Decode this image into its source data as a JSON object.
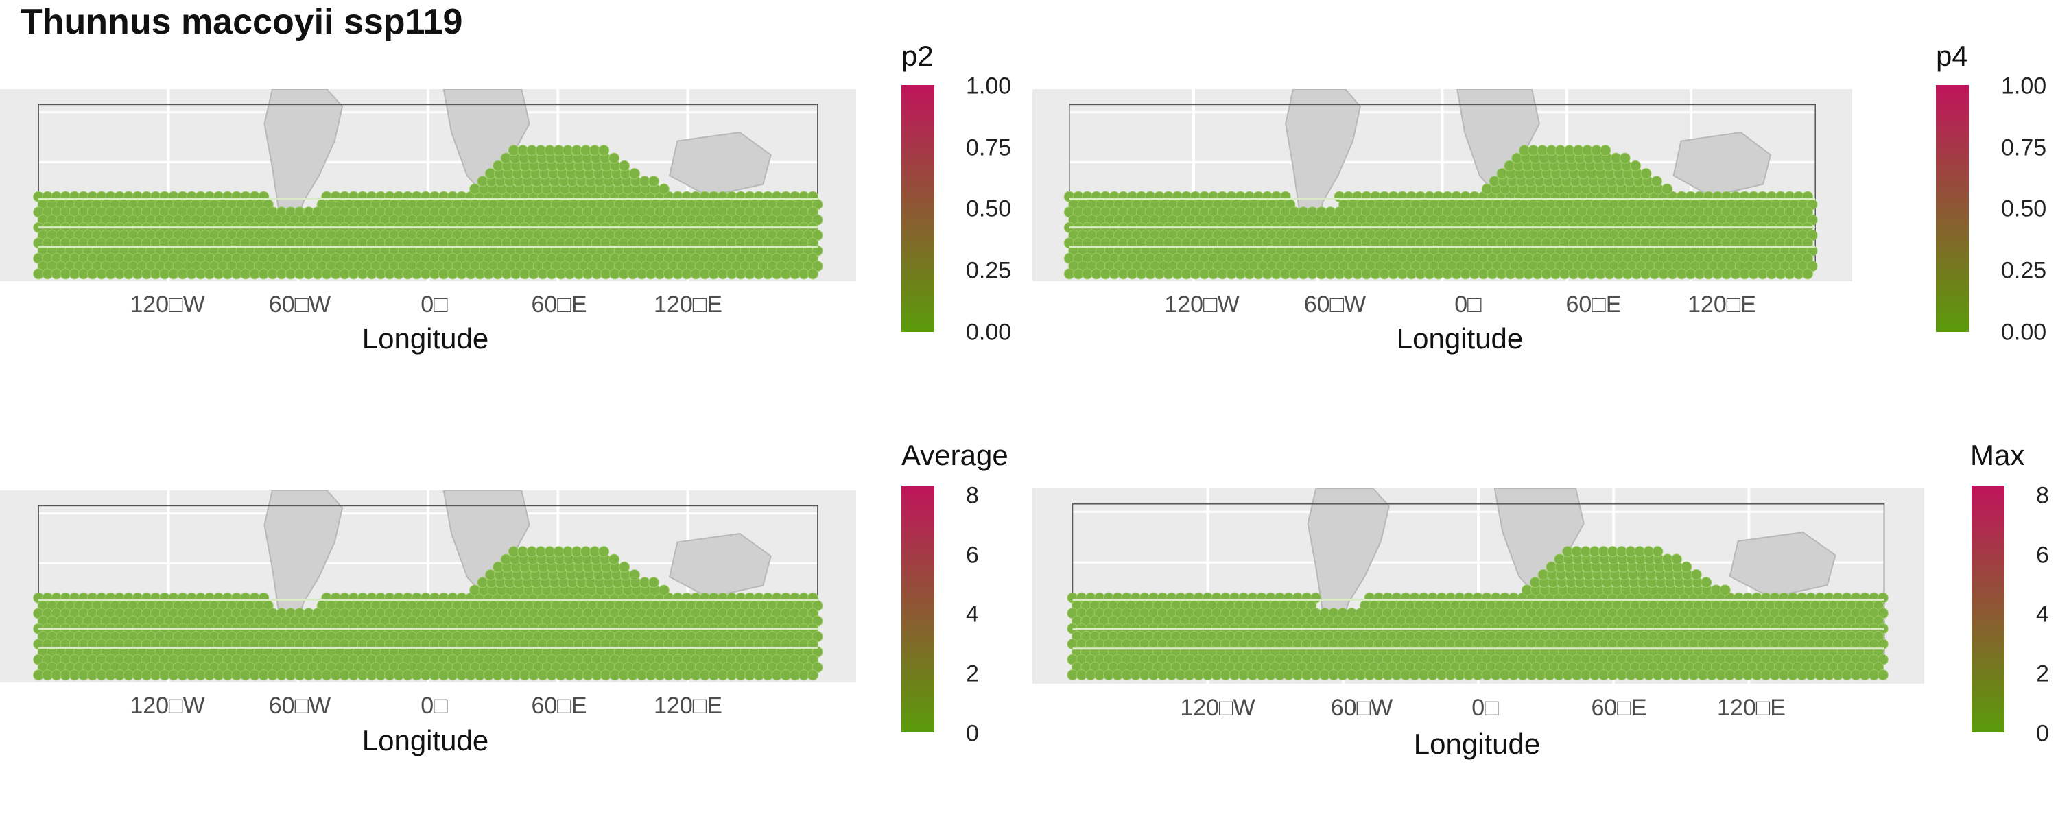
{
  "title": "Thunnus maccoyii ssp119",
  "colors": {
    "low": "#5a9c0a",
    "high": "#c0145c",
    "panel_bg": "#ebebeb",
    "land": "#d0d0d0",
    "grid": "#ffffff",
    "cell": "#7cb342"
  },
  "chart_data": [
    {
      "type": "heatmap",
      "panel": "top-left",
      "xlabel": "Longitude",
      "x_ticks": [
        "120□W",
        "60□W",
        "0□",
        "60□E",
        "120□E"
      ],
      "x_tick_values": [
        -120,
        -60,
        0,
        60,
        120
      ],
      "xlim": [
        -180,
        180
      ],
      "legend_title": "p2",
      "legend_ticks": [
        "1.00",
        "0.75",
        "0.50",
        "0.25",
        "0.00"
      ],
      "legend_values": [
        1.0,
        0.75,
        0.5,
        0.25,
        0.0
      ],
      "value_range": [
        0,
        1
      ],
      "cell_value": 0.0
    },
    {
      "type": "heatmap",
      "panel": "top-right",
      "xlabel": "Longitude",
      "x_ticks": [
        "120□W",
        "60□W",
        "0□",
        "60□E",
        "120□E"
      ],
      "x_tick_values": [
        -120,
        -60,
        0,
        60,
        120
      ],
      "xlim": [
        -180,
        180
      ],
      "legend_title": "p4",
      "legend_ticks": [
        "1.00",
        "0.75",
        "0.50",
        "0.25",
        "0.00"
      ],
      "legend_values": [
        1.0,
        0.75,
        0.5,
        0.25,
        0.0
      ],
      "value_range": [
        0,
        1
      ],
      "cell_value": 0.0
    },
    {
      "type": "heatmap",
      "panel": "bottom-left",
      "xlabel": "Longitude",
      "x_ticks": [
        "120□W",
        "60□W",
        "0□",
        "60□E",
        "120□E"
      ],
      "x_tick_values": [
        -120,
        -60,
        0,
        60,
        120
      ],
      "xlim": [
        -180,
        180
      ],
      "legend_title": "Average",
      "legend_ticks": [
        "8",
        "6",
        "4",
        "2",
        "0"
      ],
      "legend_values": [
        8,
        6,
        4,
        2,
        0
      ],
      "value_range": [
        0,
        8.3
      ],
      "cell_value": 0.0
    },
    {
      "type": "heatmap",
      "panel": "bottom-right",
      "xlabel": "Longitude",
      "x_ticks": [
        "120□W",
        "60□W",
        "0□",
        "60□E",
        "120□E"
      ],
      "x_tick_values": [
        -120,
        -60,
        0,
        60,
        120
      ],
      "xlim": [
        -180,
        180
      ],
      "legend_title": "Max",
      "legend_ticks": [
        "8",
        "6",
        "4",
        "2",
        "0"
      ],
      "legend_values": [
        8,
        6,
        4,
        2,
        0
      ],
      "value_range": [
        0,
        8.3
      ],
      "cell_value": 0.0
    }
  ]
}
